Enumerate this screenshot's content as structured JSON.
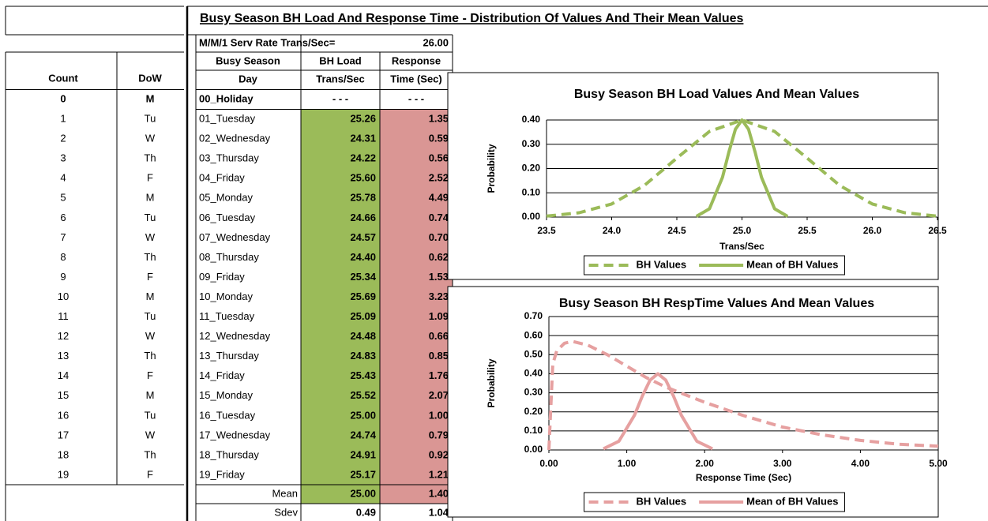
{
  "title": "Busy Season BH Load And Response Time - Distribution Of Values And Their Mean Values",
  "service_rate_label": "M/M/1 Serv Rate Trans/Sec=",
  "service_rate": "26.00",
  "left_table": {
    "headers": [
      "Count",
      "DoW"
    ],
    "rows": [
      [
        "0",
        "M"
      ],
      [
        "1",
        "Tu"
      ],
      [
        "2",
        "W"
      ],
      [
        "3",
        "Th"
      ],
      [
        "4",
        "F"
      ],
      [
        "5",
        "M"
      ],
      [
        "6",
        "Tu"
      ],
      [
        "7",
        "W"
      ],
      [
        "8",
        "Th"
      ],
      [
        "9",
        "F"
      ],
      [
        "10",
        "M"
      ],
      [
        "11",
        "Tu"
      ],
      [
        "12",
        "W"
      ],
      [
        "13",
        "Th"
      ],
      [
        "14",
        "F"
      ],
      [
        "15",
        "M"
      ],
      [
        "16",
        "Tu"
      ],
      [
        "17",
        "W"
      ],
      [
        "18",
        "Th"
      ],
      [
        "19",
        "F"
      ]
    ]
  },
  "table": {
    "headers": [
      [
        "Busy Season",
        "Day"
      ],
      [
        "BH Load",
        "Trans/Sec"
      ],
      [
        "Response",
        "Time (Sec)"
      ]
    ],
    "rows": [
      [
        "00_Holiday",
        "- - -",
        "- - -"
      ],
      [
        "01_Tuesday",
        "25.26",
        "1.35"
      ],
      [
        "02_Wednesday",
        "24.31",
        "0.59"
      ],
      [
        "03_Thursday",
        "24.22",
        "0.56"
      ],
      [
        "04_Friday",
        "25.60",
        "2.52"
      ],
      [
        "05_Monday",
        "25.78",
        "4.49"
      ],
      [
        "06_Tuesday",
        "24.66",
        "0.74"
      ],
      [
        "07_Wednesday",
        "24.57",
        "0.70"
      ],
      [
        "08_Thursday",
        "24.40",
        "0.62"
      ],
      [
        "09_Friday",
        "25.34",
        "1.53"
      ],
      [
        "10_Monday",
        "25.69",
        "3.23"
      ],
      [
        "11_Tuesday",
        "25.09",
        "1.09"
      ],
      [
        "12_Wednesday",
        "24.48",
        "0.66"
      ],
      [
        "13_Thursday",
        "24.83",
        "0.85"
      ],
      [
        "14_Friday",
        "25.43",
        "1.76"
      ],
      [
        "15_Monday",
        "25.52",
        "2.07"
      ],
      [
        "16_Tuesday",
        "25.00",
        "1.00"
      ],
      [
        "17_Wednesday",
        "24.74",
        "0.79"
      ],
      [
        "18_Thursday",
        "24.91",
        "0.92"
      ],
      [
        "19_Friday",
        "25.17",
        "1.21"
      ]
    ],
    "summary": [
      [
        "Mean",
        "25.00",
        "1.40"
      ],
      [
        "Sdev",
        "0.49",
        "1.04"
      ]
    ]
  },
  "chart_data": [
    {
      "type": "line",
      "title": "Busy Season BH Load Values And Mean Values",
      "x_label": "Trans/Sec",
      "y_label": "Probability",
      "xlim": [
        23.5,
        26.5
      ],
      "xticks": [
        23.5,
        {
          "value": 24,
          "label": "24.0"
        },
        24.5,
        {
          "value": 25,
          "label": "25.0"
        },
        25.5,
        {
          "value": 26,
          "label": "26.0"
        },
        26.5
      ],
      "ylim": [
        0,
        0.4
      ],
      "yticks": [
        {
          "value": 0,
          "label": "0.00"
        },
        {
          "value": 0.1,
          "label": "0.10"
        },
        {
          "value": 0.2,
          "label": "0.20"
        },
        {
          "value": 0.3,
          "label": "0.30"
        },
        {
          "value": 0.4,
          "label": "0.40"
        }
      ],
      "grid": true,
      "legend": "bottom",
      "series": [
        {
          "name": "BH Values",
          "color": "#9bbb59",
          "dashed": true,
          "x": [
            23.5,
            23.75,
            24.0,
            24.25,
            24.5,
            24.75,
            25.0,
            25.25,
            25.5,
            25.75,
            26.0,
            26.25,
            26.5
          ],
          "values": [
            0.004,
            0.018,
            0.054,
            0.13,
            0.243,
            0.353,
            0.4,
            0.353,
            0.243,
            0.13,
            0.054,
            0.018,
            0.004
          ]
        },
        {
          "name": "Mean of BH Values",
          "color": "#9bbb59",
          "dashed": false,
          "x": [
            24.65,
            24.75,
            24.85,
            24.9,
            24.95,
            25.0,
            25.05,
            25.1,
            25.15,
            25.25,
            25.35
          ],
          "values": [
            0.003,
            0.034,
            0.164,
            0.269,
            0.362,
            0.4,
            0.362,
            0.269,
            0.164,
            0.034,
            0.003
          ]
        }
      ]
    },
    {
      "type": "line",
      "title": "Busy Season BH RespTime Values And Mean Values",
      "x_label": "Response  Time (Sec)",
      "y_label": "Probability",
      "xlim": [
        0,
        5
      ],
      "xticks": [
        {
          "value": 0,
          "label": "0.00"
        },
        {
          "value": 1,
          "label": "1.00"
        },
        {
          "value": 2,
          "label": "2.00"
        },
        {
          "value": 3,
          "label": "3.00"
        },
        {
          "value": 4,
          "label": "4.00"
        },
        {
          "value": 5,
          "label": "5.00"
        }
      ],
      "ylim": [
        0,
        0.7
      ],
      "yticks": [
        {
          "value": 0,
          "label": "0.00"
        },
        {
          "value": 0.1,
          "label": "0.10"
        },
        {
          "value": 0.2,
          "label": "0.20"
        },
        {
          "value": 0.3,
          "label": "0.30"
        },
        {
          "value": 0.4,
          "label": "0.40"
        },
        {
          "value": 0.5,
          "label": "0.50"
        },
        {
          "value": 0.6,
          "label": "0.60"
        },
        {
          "value": 0.7,
          "label": "0.70"
        }
      ],
      "grid": true,
      "legend": "bottom",
      "series": [
        {
          "name": "BH Values",
          "color": "#e6a0a0",
          "dashed": true,
          "x": [
            0,
            0.05,
            0.1,
            0.2,
            0.3,
            0.5,
            0.75,
            1.0,
            1.25,
            1.5,
            2.0,
            2.5,
            3.0,
            3.5,
            4.0,
            4.5,
            5.0
          ],
          "values": [
            0,
            0.45,
            0.52,
            0.56,
            0.57,
            0.55,
            0.5,
            0.44,
            0.38,
            0.33,
            0.25,
            0.18,
            0.12,
            0.08,
            0.05,
            0.03,
            0.02
          ]
        },
        {
          "name": "Mean of BH Values",
          "color": "#e6a0a0",
          "dashed": false,
          "x": [
            0.7,
            0.9,
            1.1,
            1.2,
            1.3,
            1.4,
            1.5,
            1.6,
            1.7,
            1.9,
            2.1
          ],
          "values": [
            0.006,
            0.046,
            0.183,
            0.283,
            0.367,
            0.4,
            0.367,
            0.283,
            0.183,
            0.046,
            0.006
          ]
        }
      ]
    }
  ]
}
